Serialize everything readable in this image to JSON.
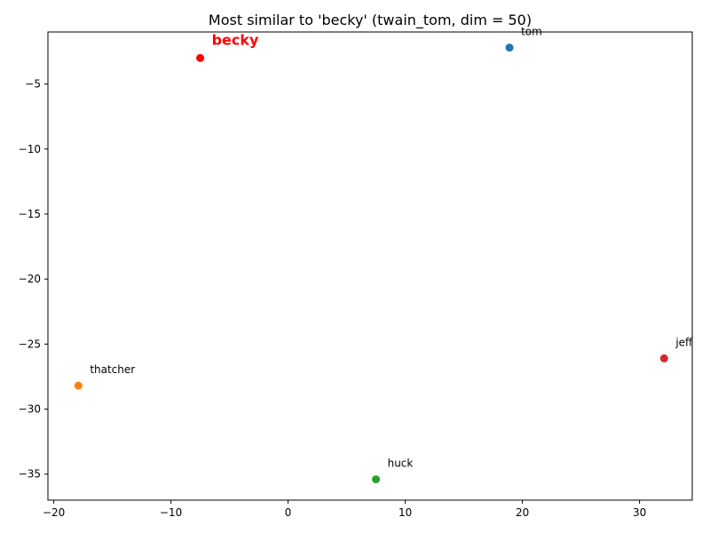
{
  "chart_data": {
    "type": "scatter",
    "title": "Most similar to 'becky' (twain_tom, dim = 50)",
    "xlabel": "",
    "ylabel": "",
    "xlim": [
      -20.5,
      34.5
    ],
    "ylim": [
      -37,
      -1
    ],
    "x_ticks": [
      -20,
      -10,
      0,
      10,
      20,
      30
    ],
    "y_ticks": [
      -5,
      -10,
      -15,
      -20,
      -25,
      -30,
      -35
    ],
    "x_tick_labels": [
      "−20",
      "−10",
      "0",
      "10",
      "20",
      "30"
    ],
    "y_tick_labels": [
      "−5",
      "−10",
      "−15",
      "−20",
      "−25",
      "−30",
      "−35"
    ],
    "grid": false,
    "points": [
      {
        "label": "tom",
        "x": 18.9,
        "y": -2.2,
        "color": "#1f77b4",
        "highlight": false
      },
      {
        "label": "thatcher",
        "x": -17.9,
        "y": -28.2,
        "color": "#ff7f0e",
        "highlight": false
      },
      {
        "label": "huck",
        "x": 7.5,
        "y": -35.4,
        "color": "#2ca02c",
        "highlight": false
      },
      {
        "label": "jeff",
        "x": 32.1,
        "y": -26.1,
        "color": "#d62728",
        "highlight": false
      },
      {
        "label": "becky",
        "x": -7.5,
        "y": -3.0,
        "color": "#ff0000",
        "highlight": true
      }
    ]
  }
}
